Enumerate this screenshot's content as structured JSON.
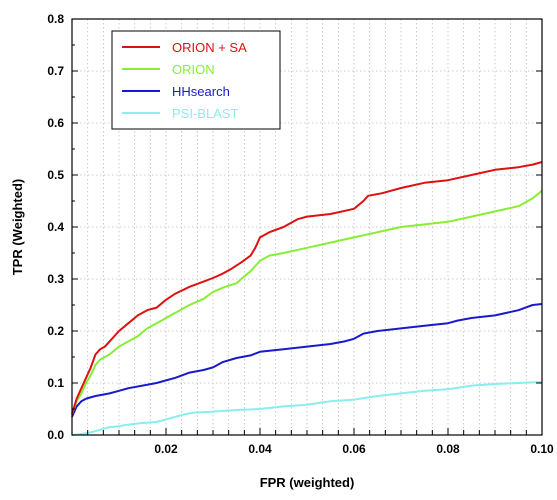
{
  "chart_data": {
    "type": "line",
    "title": "",
    "xlabel": "FPR (weighted)",
    "ylabel": "TPR (Weighted)",
    "xlim": [
      0,
      0.1
    ],
    "ylim": [
      0,
      0.8
    ],
    "x_ticks": [
      0.02,
      0.04,
      0.06,
      0.08,
      0.1
    ],
    "x_tick_labels": [
      "0.02",
      "0.04",
      "0.06",
      "0.08",
      "0.10"
    ],
    "y_ticks": [
      0.0,
      0.1,
      0.2,
      0.3,
      0.4,
      0.5,
      0.6,
      0.7,
      0.8
    ],
    "y_tick_labels": [
      "0.0",
      "0.1",
      "0.2",
      "0.3",
      "0.4",
      "0.5",
      "0.6",
      "0.7",
      "0.8"
    ],
    "grid": "dotted, both axes",
    "legend_position": "top-left",
    "series": [
      {
        "name": "ORION + SA",
        "color": "#dd1111",
        "points": [
          [
            0,
            0.04
          ],
          [
            0.001,
            0.07
          ],
          [
            0.002,
            0.09
          ],
          [
            0.003,
            0.11
          ],
          [
            0.004,
            0.13
          ],
          [
            0.005,
            0.155
          ],
          [
            0.006,
            0.165
          ],
          [
            0.007,
            0.17
          ],
          [
            0.008,
            0.18
          ],
          [
            0.01,
            0.2
          ],
          [
            0.012,
            0.215
          ],
          [
            0.014,
            0.23
          ],
          [
            0.016,
            0.24
          ],
          [
            0.018,
            0.245
          ],
          [
            0.02,
            0.26
          ],
          [
            0.022,
            0.272
          ],
          [
            0.025,
            0.285
          ],
          [
            0.028,
            0.295
          ],
          [
            0.03,
            0.302
          ],
          [
            0.032,
            0.31
          ],
          [
            0.034,
            0.32
          ],
          [
            0.036,
            0.332
          ],
          [
            0.038,
            0.345
          ],
          [
            0.039,
            0.36
          ],
          [
            0.04,
            0.38
          ],
          [
            0.042,
            0.39
          ],
          [
            0.045,
            0.4
          ],
          [
            0.048,
            0.415
          ],
          [
            0.05,
            0.42
          ],
          [
            0.055,
            0.425
          ],
          [
            0.06,
            0.435
          ],
          [
            0.062,
            0.45
          ],
          [
            0.063,
            0.46
          ],
          [
            0.066,
            0.465
          ],
          [
            0.07,
            0.475
          ],
          [
            0.075,
            0.485
          ],
          [
            0.08,
            0.49
          ],
          [
            0.085,
            0.5
          ],
          [
            0.09,
            0.51
          ],
          [
            0.095,
            0.515
          ],
          [
            0.098,
            0.52
          ],
          [
            0.1,
            0.525
          ]
        ]
      },
      {
        "name": "ORION",
        "color": "#88ee33",
        "points": [
          [
            0,
            0.04
          ],
          [
            0.001,
            0.065
          ],
          [
            0.002,
            0.08
          ],
          [
            0.003,
            0.1
          ],
          [
            0.004,
            0.115
          ],
          [
            0.005,
            0.135
          ],
          [
            0.006,
            0.145
          ],
          [
            0.008,
            0.155
          ],
          [
            0.01,
            0.17
          ],
          [
            0.012,
            0.18
          ],
          [
            0.014,
            0.19
          ],
          [
            0.016,
            0.205
          ],
          [
            0.018,
            0.215
          ],
          [
            0.02,
            0.225
          ],
          [
            0.022,
            0.235
          ],
          [
            0.025,
            0.25
          ],
          [
            0.028,
            0.262
          ],
          [
            0.03,
            0.275
          ],
          [
            0.032,
            0.283
          ],
          [
            0.035,
            0.292
          ],
          [
            0.036,
            0.3
          ],
          [
            0.038,
            0.315
          ],
          [
            0.04,
            0.335
          ],
          [
            0.042,
            0.345
          ],
          [
            0.045,
            0.35
          ],
          [
            0.05,
            0.36
          ],
          [
            0.055,
            0.37
          ],
          [
            0.06,
            0.38
          ],
          [
            0.065,
            0.39
          ],
          [
            0.07,
            0.4
          ],
          [
            0.075,
            0.405
          ],
          [
            0.08,
            0.41
          ],
          [
            0.085,
            0.42
          ],
          [
            0.09,
            0.43
          ],
          [
            0.095,
            0.44
          ],
          [
            0.098,
            0.455
          ],
          [
            0.1,
            0.47
          ]
        ]
      },
      {
        "name": "HHsearch",
        "color": "#1a1acc",
        "points": [
          [
            0,
            0.035
          ],
          [
            0.001,
            0.055
          ],
          [
            0.002,
            0.065
          ],
          [
            0.003,
            0.07
          ],
          [
            0.005,
            0.075
          ],
          [
            0.008,
            0.08
          ],
          [
            0.01,
            0.085
          ],
          [
            0.012,
            0.09
          ],
          [
            0.015,
            0.095
          ],
          [
            0.018,
            0.1
          ],
          [
            0.02,
            0.105
          ],
          [
            0.022,
            0.11
          ],
          [
            0.025,
            0.12
          ],
          [
            0.028,
            0.125
          ],
          [
            0.03,
            0.13
          ],
          [
            0.032,
            0.14
          ],
          [
            0.035,
            0.148
          ],
          [
            0.038,
            0.153
          ],
          [
            0.04,
            0.16
          ],
          [
            0.045,
            0.165
          ],
          [
            0.05,
            0.17
          ],
          [
            0.055,
            0.175
          ],
          [
            0.058,
            0.18
          ],
          [
            0.06,
            0.185
          ],
          [
            0.062,
            0.195
          ],
          [
            0.065,
            0.2
          ],
          [
            0.07,
            0.205
          ],
          [
            0.075,
            0.21
          ],
          [
            0.08,
            0.215
          ],
          [
            0.082,
            0.22
          ],
          [
            0.085,
            0.225
          ],
          [
            0.09,
            0.23
          ],
          [
            0.095,
            0.24
          ],
          [
            0.098,
            0.25
          ],
          [
            0.1,
            0.252
          ]
        ]
      },
      {
        "name": "PSI-BLAST",
        "color": "#88eeee",
        "points": [
          [
            0,
            0.0
          ],
          [
            0.002,
            0.002
          ],
          [
            0.004,
            0.005
          ],
          [
            0.006,
            0.01
          ],
          [
            0.008,
            0.015
          ],
          [
            0.01,
            0.017
          ],
          [
            0.012,
            0.02
          ],
          [
            0.015,
            0.023
          ],
          [
            0.018,
            0.025
          ],
          [
            0.02,
            0.03
          ],
          [
            0.022,
            0.035
          ],
          [
            0.024,
            0.04
          ],
          [
            0.026,
            0.043
          ],
          [
            0.03,
            0.045
          ],
          [
            0.035,
            0.048
          ],
          [
            0.04,
            0.05
          ],
          [
            0.045,
            0.055
          ],
          [
            0.05,
            0.058
          ],
          [
            0.055,
            0.065
          ],
          [
            0.06,
            0.068
          ],
          [
            0.065,
            0.075
          ],
          [
            0.07,
            0.08
          ],
          [
            0.075,
            0.085
          ],
          [
            0.08,
            0.088
          ],
          [
            0.085,
            0.095
          ],
          [
            0.09,
            0.098
          ],
          [
            0.095,
            0.1
          ],
          [
            0.1,
            0.102
          ]
        ]
      }
    ]
  }
}
